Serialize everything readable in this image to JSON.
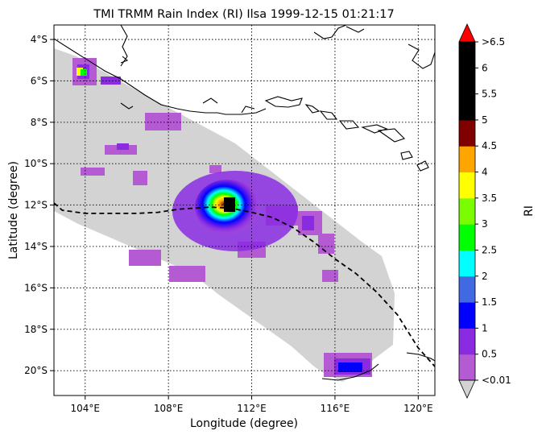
{
  "title": "TMI TRMM Rain Index (RI) Ilsa 1999-12-15 01:21:17",
  "xlabel": "Longitude (degree)",
  "ylabel": "Latitude (degree)",
  "x_ticks": [
    "104°E",
    "108°E",
    "112°E",
    "116°E",
    "120°E"
  ],
  "y_ticks": [
    "4°S",
    "6°S",
    "8°S",
    "10°S",
    "12°S",
    "14°S",
    "16°S",
    "18°S",
    "20°S"
  ],
  "colorbar": {
    "label": "RI",
    "tick_labels": [
      "<0.01",
      "0.5",
      "1",
      "1.5",
      "2",
      "2.5",
      "3",
      "3.5",
      "4",
      "4.5",
      "5",
      "5.5",
      "6",
      ">6.5"
    ],
    "colors": [
      "#b45ad2",
      "#8a2be2",
      "#0000ff",
      "#4169e1",
      "#00ffff",
      "#00ff00",
      "#7cfc00",
      "#ffff00",
      "#ffa500",
      "#800000",
      "#000000",
      "#000000",
      "#000000"
    ],
    "under_color": "#d3d3d3",
    "over_color": "#ff0000"
  },
  "map": {
    "lon_range": [
      102.5,
      120.8
    ],
    "lat_range": [
      -21.2,
      -3.3
    ],
    "swath_color": "#d3d3d3",
    "track_style": "dashed",
    "track": [
      [
        102.5,
        -11.9
      ],
      [
        102.9,
        -12.25
      ],
      [
        104.0,
        -12.4
      ],
      [
        106.5,
        -12.4
      ],
      [
        107.5,
        -12.35
      ],
      [
        108.5,
        -12.2
      ],
      [
        110.0,
        -12.1
      ],
      [
        111.0,
        -12.15
      ],
      [
        112.0,
        -12.35
      ],
      [
        113.0,
        -12.6
      ],
      [
        114.0,
        -13.1
      ],
      [
        115.0,
        -13.8
      ],
      [
        116.0,
        -14.6
      ],
      [
        117.0,
        -15.3
      ],
      [
        118.0,
        -16.2
      ],
      [
        119.0,
        -17.3
      ],
      [
        120.0,
        -18.9
      ],
      [
        120.8,
        -19.8
      ]
    ]
  }
}
